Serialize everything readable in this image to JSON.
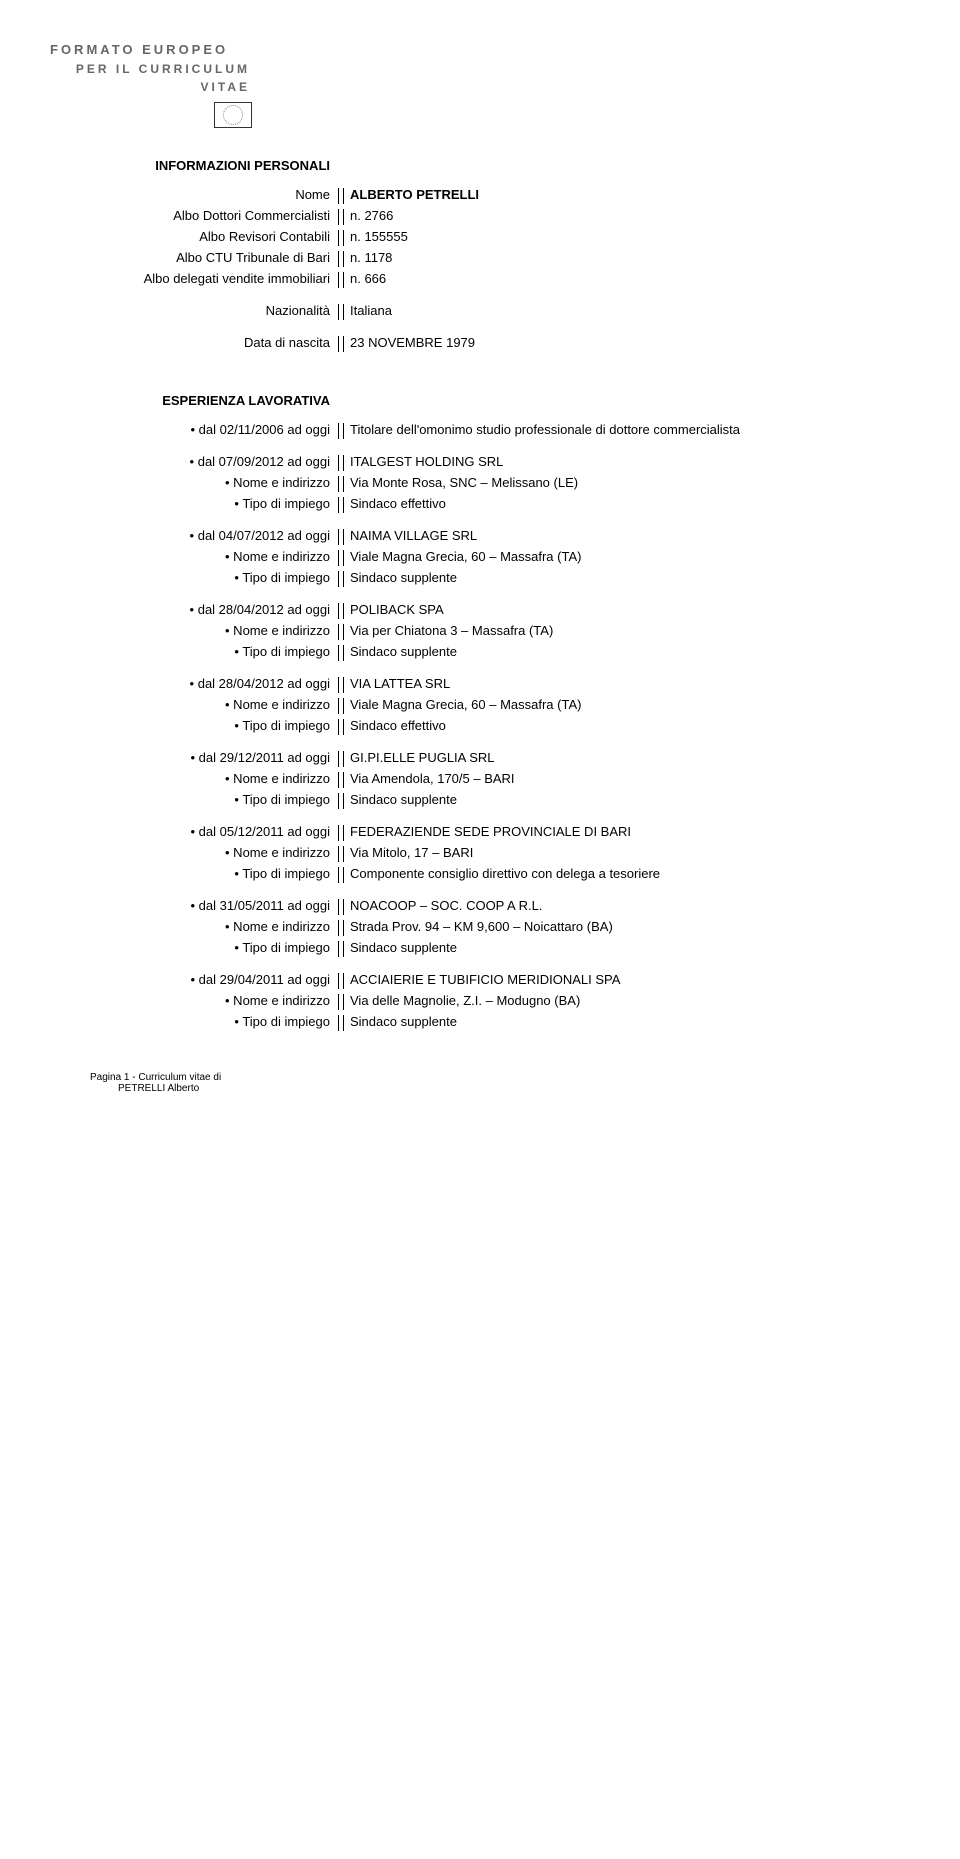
{
  "header": {
    "line1": "FORMATO EUROPEO",
    "line2": "PER IL CURRICULUM",
    "line3": "VITAE"
  },
  "section_personal": "INFORMAZIONI PERSONALI",
  "personal": {
    "name_label": "Nome",
    "name_value": "ALBERTO PETRELLI",
    "albo1_label": "Albo Dottori Commercialisti",
    "albo1_value": "n. 2766",
    "albo2_label": "Albo Revisori Contabili",
    "albo2_value": "n. 155555",
    "albo3_label": "Albo CTU Tribunale di Bari",
    "albo3_value": "n. 1178",
    "albo4_label": "Albo delegati vendite immobiliari",
    "albo4_value": "n. 666",
    "naz_label": "Nazionalità",
    "naz_value": "Italiana",
    "dob_label": "Data di nascita",
    "dob_value": "23 NOVEMBRE 1979"
  },
  "section_work": "ESPERIENZA LAVORATIVA",
  "labels": {
    "nome_ind": "• Nome e indirizzo",
    "tipo_imp": "• Tipo di impiego"
  },
  "jobs": [
    {
      "period": "• dal 02/11/2006 ad oggi",
      "title": "Titolare dell'omonimo studio professionale di dottore commercialista"
    },
    {
      "period": "• dal 07/09/2012 ad oggi",
      "company": "ITALGEST HOLDING SRL",
      "address": "Via Monte Rosa, SNC – Melissano (LE)",
      "role": "Sindaco effettivo"
    },
    {
      "period": "• dal 04/07/2012 ad oggi",
      "company": "NAIMA VILLAGE SRL",
      "address": "Viale Magna Grecia, 60 – Massafra (TA)",
      "role": "Sindaco supplente"
    },
    {
      "period": "• dal 28/04/2012 ad oggi",
      "company": "POLIBACK SPA",
      "address": "Via per Chiatona 3 – Massafra (TA)",
      "role": "Sindaco supplente"
    },
    {
      "period": "• dal 28/04/2012 ad oggi",
      "company": "VIA LATTEA SRL",
      "address": "Viale Magna Grecia, 60 – Massafra (TA)",
      "role": "Sindaco effettivo"
    },
    {
      "period": "• dal 29/12/2011 ad oggi",
      "company": "GI.PI.ELLE PUGLIA SRL",
      "address": "Via Amendola, 170/5 – BARI",
      "role": "Sindaco supplente"
    },
    {
      "period": "• dal 05/12/2011 ad oggi",
      "company": "FEDERAZIENDE SEDE PROVINCIALE DI BARI",
      "address": "Via Mitolo, 17 – BARI",
      "role": "Componente consiglio direttivo con delega a tesoriere"
    },
    {
      "period": "• dal 31/05/2011 ad oggi",
      "company": "NOACOOP – SOC. COOP A R.L.",
      "address": "Strada Prov. 94 – KM 9,600 – Noicattaro (BA)",
      "role": "Sindaco supplente"
    },
    {
      "period": "• dal 29/04/2011 ad oggi",
      "company": "ACCIAIERIE E TUBIFICIO MERIDIONALI SPA",
      "address": "Via delle Magnolie, Z.I. – Modugno (BA)",
      "role": "Sindaco supplente"
    }
  ],
  "footer": {
    "line1": "Pagina 1 - Curriculum vitae di",
    "line2": "PETRELLI Alberto"
  }
}
